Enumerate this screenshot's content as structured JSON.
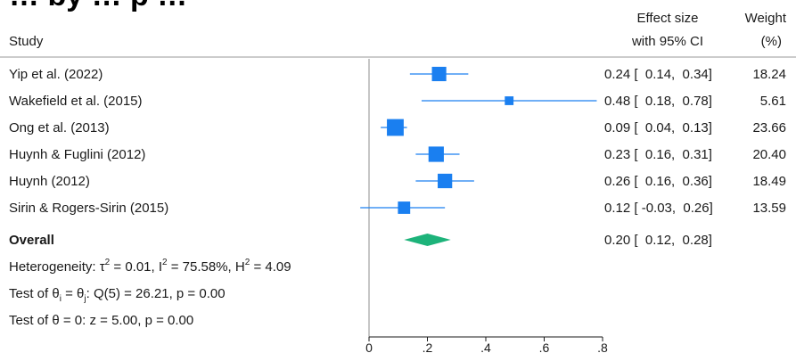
{
  "chart_data": {
    "type": "forest",
    "title": "… by … p …",
    "columns": {
      "study": "Study",
      "effect_line1": "Effect size",
      "effect_line2": "with 95% CI",
      "weight_line1": "Weight",
      "weight_line2": "(%)"
    },
    "studies": [
      {
        "label": "Yip et al. (2022)",
        "effect": 0.24,
        "ci_low": 0.14,
        "ci_high": 0.34,
        "ci_text": "0.24 [  0.14,  0.34]",
        "weight": 18.24,
        "weight_text": "18.24"
      },
      {
        "label": "Wakefield et al. (2015)",
        "effect": 0.48,
        "ci_low": 0.18,
        "ci_high": 0.78,
        "ci_text": "0.48 [  0.18,  0.78]",
        "weight": 5.61,
        "weight_text": "5.61"
      },
      {
        "label": "Ong et al. (2013)",
        "effect": 0.09,
        "ci_low": 0.04,
        "ci_high": 0.13,
        "ci_text": "0.09 [  0.04,  0.13]",
        "weight": 23.66,
        "weight_text": "23.66"
      },
      {
        "label": "Huynh & Fuglini (2012)",
        "effect": 0.23,
        "ci_low": 0.16,
        "ci_high": 0.31,
        "ci_text": "0.23 [  0.16,  0.31]",
        "weight": 20.4,
        "weight_text": "20.40"
      },
      {
        "label": "Huynh (2012)",
        "effect": 0.26,
        "ci_low": 0.16,
        "ci_high": 0.36,
        "ci_text": "0.26 [  0.16,  0.36]",
        "weight": 18.49,
        "weight_text": "18.49"
      },
      {
        "label": "Sirin & Rogers-Sirin (2015)",
        "effect": 0.12,
        "ci_low": -0.03,
        "ci_high": 0.26,
        "ci_text": "0.12 [ -0.03,  0.26]",
        "weight": 13.59,
        "weight_text": "13.59"
      }
    ],
    "overall": {
      "label": "Overall",
      "effect": 0.2,
      "ci_low": 0.12,
      "ci_high": 0.28,
      "ci_text": "0.20 [  0.12,  0.28]"
    },
    "heterogeneity": {
      "prefix": "Heterogeneity: τ",
      "tau_sup": "2",
      "tau_val": " = 0.01, I",
      "i_sup": "2",
      "i_val": " = 75.58%, H",
      "h_sup": "2",
      "h_val": " = 4.09"
    },
    "test_equal": {
      "part1": "Test of θ",
      "sub_i": "i",
      "part2": " = θ",
      "sub_j": "j",
      "part3": ": Q(5) = 26.21, p = 0.00"
    },
    "test_zero": "Test of θ = 0: z = 5.00, p = 0.00",
    "x_ticks": [
      0,
      0.2,
      0.4,
      0.6,
      0.8
    ],
    "x_tick_labels": [
      "0",
      ".2",
      ".4",
      ".6",
      ".8"
    ],
    "xlim": [
      -0.05,
      0.8
    ],
    "marker_color": "#1a7ff0",
    "diamond_color": "#1db37a"
  }
}
